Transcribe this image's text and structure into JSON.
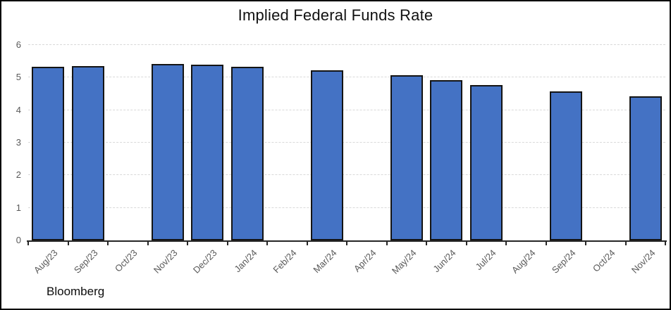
{
  "chart_data": {
    "type": "bar",
    "title": "Implied Federal Funds Rate",
    "categories": [
      "Aug/23",
      "Sep/23",
      "Oct/23",
      "Nov/23",
      "Dec/23",
      "Jan/24",
      "Feb/24",
      "Mar/24",
      "Apr/24",
      "May/24",
      "Jun/24",
      "Jul/24",
      "Aug/24",
      "Sep/24",
      "Oct/24",
      "Nov/24"
    ],
    "values": [
      5.33,
      5.36,
      null,
      5.42,
      5.39,
      5.34,
      null,
      5.23,
      null,
      5.08,
      4.92,
      4.77,
      null,
      4.57,
      null,
      4.42
    ],
    "xlabel": "",
    "ylabel": "",
    "ylim": [
      0,
      6
    ],
    "yticks": [
      0,
      1,
      2,
      3,
      4,
      5,
      6
    ],
    "grid": "horizontal-dashed",
    "legend": "none",
    "x_label_rotation_deg": 45,
    "bar_fill_color": "#4472C4",
    "bar_border_color": "#141414",
    "axis_line_color": "#262626",
    "gridline_color": "#D9D9D9",
    "axis_label_color": "#595959",
    "title_color": "#111111"
  },
  "footer": {
    "source_label": "Bloomberg"
  }
}
